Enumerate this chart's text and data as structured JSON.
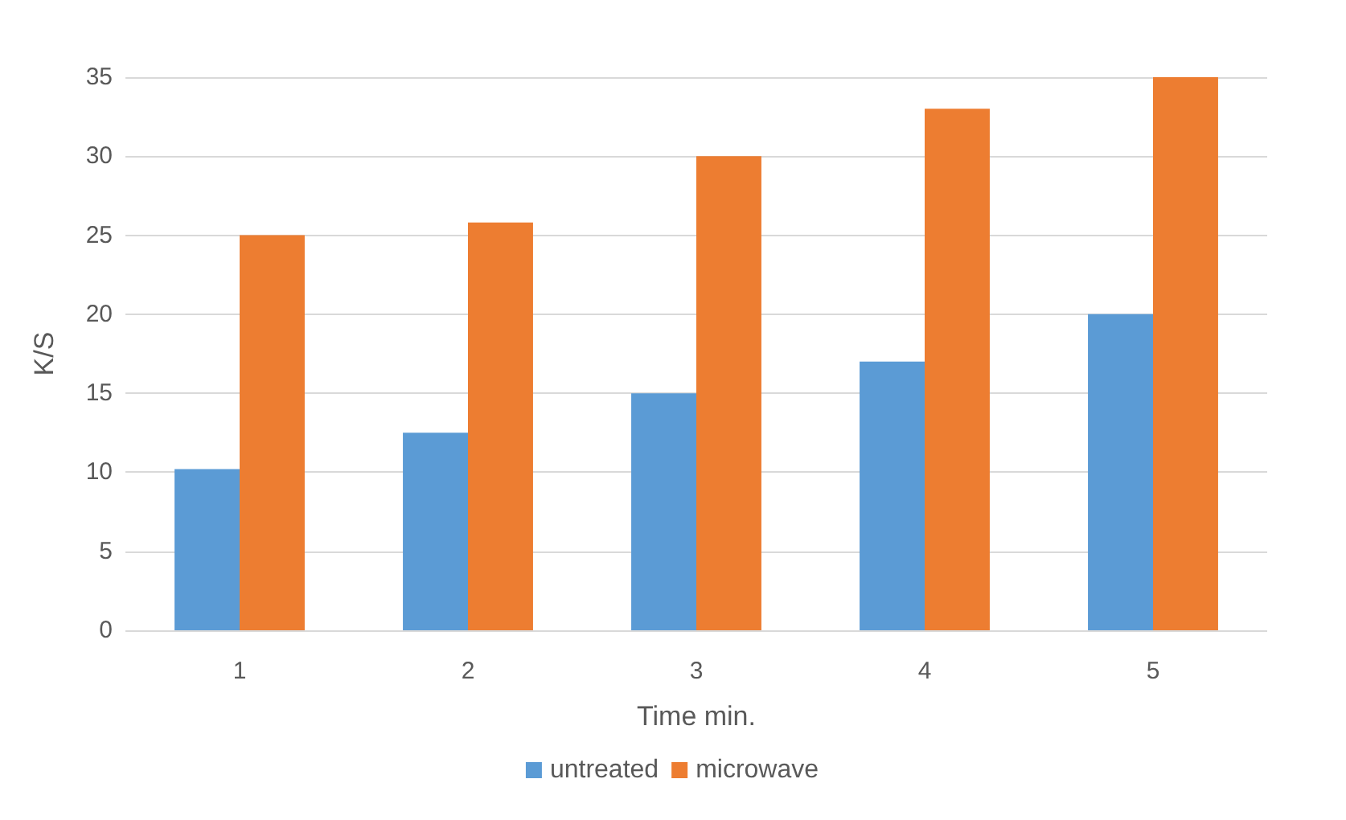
{
  "chart_data": {
    "type": "bar",
    "xlabel": "Time min.",
    "ylabel": "K/S",
    "categories": [
      "1",
      "2",
      "3",
      "4",
      "5"
    ],
    "series": [
      {
        "name": "untreated",
        "color": "#5b9bd5",
        "values": [
          10.2,
          12.5,
          15,
          17,
          20
        ]
      },
      {
        "name": "microwave",
        "color": "#ed7d31",
        "values": [
          25,
          25.8,
          30,
          33,
          35
        ]
      }
    ],
    "ylim": [
      0,
      35
    ],
    "yticks": [
      0,
      5,
      10,
      15,
      20,
      25,
      30,
      35
    ],
    "grid": "y",
    "legend": "bottom"
  }
}
